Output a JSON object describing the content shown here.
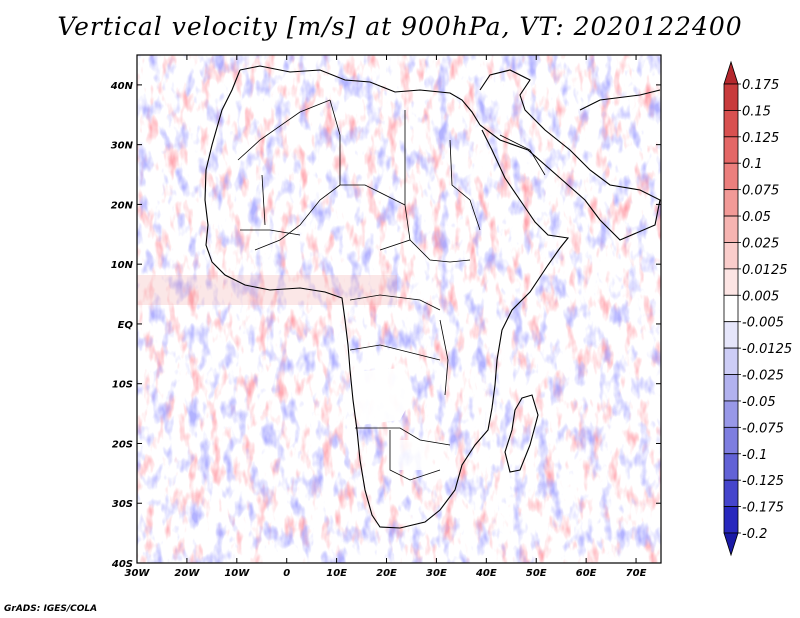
{
  "title": "Vertical velocity [m/s] at 900hPa, VT: 2020122400",
  "credit": "GrADS: IGES/COLA",
  "axes": {
    "lon_labels": [
      "30W",
      "20W",
      "10W",
      "0",
      "10E",
      "20E",
      "30E",
      "40E",
      "50E",
      "60E",
      "70E"
    ],
    "lat_labels": [
      "40N",
      "30N",
      "20N",
      "10N",
      "EQ",
      "10S",
      "20S",
      "30S",
      "40S"
    ]
  },
  "colorbar": {
    "levels": [
      "0.175",
      "0.15",
      "0.125",
      "0.1",
      "0.075",
      "0.05",
      "0.025",
      "0.0125",
      "0.005",
      "-0.005",
      "-0.0125",
      "-0.025",
      "-0.05",
      "-0.075",
      "-0.1",
      "-0.125",
      "-0.175",
      "-0.2"
    ],
    "colors": [
      "#b4282d",
      "#c83b3c",
      "#d85150",
      "#e46766",
      "#ec7f7d",
      "#f29a97",
      "#f6b4b1",
      "#facdcb",
      "#fde5e4",
      "#ffffff",
      "#e6e6fb",
      "#cdcdf6",
      "#b2b2ef",
      "#9898e8",
      "#7e7ee0",
      "#6262d6",
      "#4545cc",
      "#2828be",
      "#1a1aa6"
    ]
  }
}
